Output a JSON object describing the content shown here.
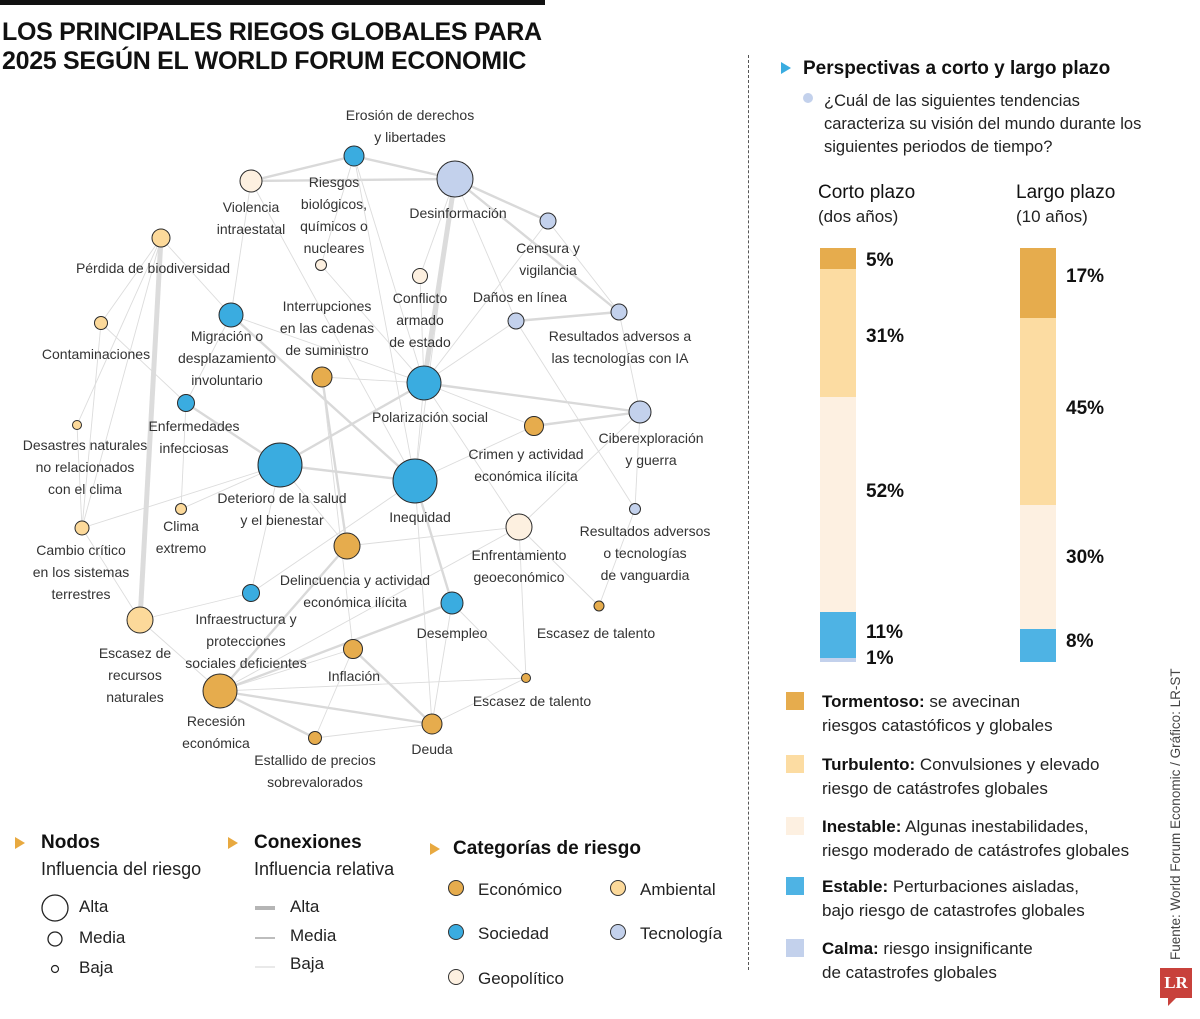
{
  "title": {
    "line1": "LOS PRINCIPALES RIEGOS GLOBALES PARA",
    "line2": "2025 SEGÚN EL WORLD FORUM ECONOMIC"
  },
  "colors": {
    "economico": "#e6ac4d",
    "ambiental": "#fcd99a",
    "sociedad": "#3aace0",
    "tecnologia": "#c3d1ec",
    "geopolitico": "#fdf0e0",
    "tormentoso": "#e6ac4d",
    "turbulento": "#fcdca2",
    "inestable": "#fdf0e1",
    "estable": "#4eb3e4",
    "calma": "#c3d1ec",
    "accent": "#e8a940",
    "edge": "#d8d8d8"
  },
  "chart_data": [
    {
      "type": "network",
      "title": "LOS PRINCIPALES RIEGOS GLOBALES PARA 2025 SEGÚN EL WORLD FORUM ECONOMIC",
      "nodes": [
        {
          "id": "erosion",
          "label": [
            "Erosión de derechos",
            "y libertades"
          ],
          "category": "sociedad",
          "influence": "media"
        },
        {
          "id": "desinformacion",
          "label": [
            "Desinformación"
          ],
          "category": "tecnologia",
          "influence": "alta"
        },
        {
          "id": "violencia",
          "label": [
            "Violencia",
            "intraestatal"
          ],
          "category": "geopolitico",
          "influence": "media"
        },
        {
          "id": "riesgos_bio",
          "label": [
            "Riesgos",
            "biológicos,",
            "químicos o",
            "nucleares"
          ],
          "category": "geopolitico",
          "influence": "baja"
        },
        {
          "id": "censura",
          "label": [
            "Censura y",
            "vigilancia"
          ],
          "category": "tecnologia",
          "influence": "baja"
        },
        {
          "id": "biodiversidad",
          "label": [
            "Pérdida de biodiversidad"
          ],
          "category": "ambiental",
          "influence": "media"
        },
        {
          "id": "conflicto",
          "label": [
            "Conflicto",
            "armado",
            "de estado"
          ],
          "category": "geopolitico",
          "influence": "baja"
        },
        {
          "id": "danos",
          "label": [
            "Daños en línea"
          ],
          "category": "tecnologia",
          "influence": "baja"
        },
        {
          "id": "ia",
          "label": [
            "Resultados adversos a",
            "las tecnologías con IA"
          ],
          "category": "tecnologia",
          "influence": "baja"
        },
        {
          "id": "migracion",
          "label": [
            "Migración o",
            "desplazamiento",
            "involuntario"
          ],
          "category": "sociedad",
          "influence": "media"
        },
        {
          "id": "interrupciones",
          "label": [
            "Interrupciones",
            "en las cadenas",
            "de suministro"
          ],
          "category": "economico",
          "influence": "media"
        },
        {
          "id": "contaminaciones",
          "label": [
            "Contaminaciones"
          ],
          "category": "ambiental",
          "influence": "baja"
        },
        {
          "id": "polarizacion",
          "label": [
            "Polarización social"
          ],
          "category": "sociedad",
          "influence": "alta"
        },
        {
          "id": "enfermedades",
          "label": [
            "Enfermedades",
            "infecciosas"
          ],
          "category": "sociedad",
          "influence": "baja"
        },
        {
          "id": "crimen",
          "label": [
            "Crimen y actividad",
            "económica ilícita"
          ],
          "category": "economico",
          "influence": "baja"
        },
        {
          "id": "ciber",
          "label": [
            "Ciberexploración",
            "y guerra"
          ],
          "category": "tecnologia",
          "influence": "media"
        },
        {
          "id": "desastres",
          "label": [
            "Desastres naturales",
            "no relacionados",
            "con el clima"
          ],
          "category": "ambiental",
          "influence": "baja"
        },
        {
          "id": "deterioro",
          "label": [
            "Deterioro de la salud",
            "y el bienestar"
          ],
          "category": "sociedad",
          "influence": "alta"
        },
        {
          "id": "inequidad",
          "label": [
            "Inequidad"
          ],
          "category": "sociedad",
          "influence": "alta"
        },
        {
          "id": "clima",
          "label": [
            "Clima",
            "extremo"
          ],
          "category": "ambiental",
          "influence": "baja"
        },
        {
          "id": "vanguardia",
          "label": [
            "Resultados adversos",
            "o tecnologías",
            "de vanguardia"
          ],
          "category": "tecnologia",
          "influence": "baja"
        },
        {
          "id": "cambio",
          "label": [
            "Cambio crítico",
            "en los sistemas",
            "terrestres"
          ],
          "category": "ambiental",
          "influence": "baja"
        },
        {
          "id": "enfrentamiento",
          "label": [
            "Enfrentamiento",
            "geoeconómico"
          ],
          "category": "geopolitico",
          "influence": "media"
        },
        {
          "id": "delincuencia",
          "label": [
            "Delincuencia y actividad",
            "económica ilícita"
          ],
          "category": "economico",
          "influence": "media"
        },
        {
          "id": "infraestructura",
          "label": [
            "Infraestructura y",
            "protecciones",
            "sociales deficientes"
          ],
          "category": "sociedad",
          "influence": "baja"
        },
        {
          "id": "desempleo",
          "label": [
            "Desempleo"
          ],
          "category": "sociedad",
          "influence": "media"
        },
        {
          "id": "talento1",
          "label": [
            "Escasez de talento"
          ],
          "category": "economico",
          "influence": "baja"
        },
        {
          "id": "escasez_rec",
          "label": [
            "Escasez de",
            "recursos",
            "naturales"
          ],
          "category": "ambiental",
          "influence": "media"
        },
        {
          "id": "inflacion",
          "label": [
            "Inflación"
          ],
          "category": "economico",
          "influence": "media"
        },
        {
          "id": "talento2",
          "label": [
            "Escasez de talento"
          ],
          "category": "economico",
          "influence": "baja"
        },
        {
          "id": "recesion",
          "label": [
            "Recesión",
            "económica"
          ],
          "category": "economico",
          "influence": "alta"
        },
        {
          "id": "estallido",
          "label": [
            "Estallido de precios",
            "sobrevalorados"
          ],
          "category": "economico",
          "influence": "baja"
        },
        {
          "id": "deuda",
          "label": [
            "Deuda"
          ],
          "category": "economico",
          "influence": "media"
        }
      ],
      "edges": [
        [
          "biodiversidad",
          "escasez_rec",
          "alta"
        ],
        [
          "desinformacion",
          "polarizacion",
          "alta"
        ],
        [
          "erosion",
          "desinformacion",
          "media"
        ],
        [
          "violencia",
          "erosion",
          "media"
        ],
        [
          "violencia",
          "desinformacion",
          "media"
        ],
        [
          "desinformacion",
          "censura",
          "media"
        ],
        [
          "desinformacion",
          "ia",
          "media"
        ],
        [
          "danos",
          "ia",
          "media"
        ],
        [
          "censura",
          "ia",
          "baja"
        ],
        [
          "polarizacion",
          "ciber",
          "media"
        ],
        [
          "crimen",
          "ciber",
          "media"
        ],
        [
          "migracion",
          "inequidad",
          "media"
        ],
        [
          "migracion",
          "polarizacion",
          "baja"
        ],
        [
          "deterioro",
          "inequidad",
          "media"
        ],
        [
          "deterioro",
          "polarizacion",
          "media"
        ],
        [
          "enfermedades",
          "deterioro",
          "media"
        ],
        [
          "interrupciones",
          "delincuencia",
          "media"
        ],
        [
          "inequidad",
          "desempleo",
          "media"
        ],
        [
          "inequidad",
          "polarizacion",
          "baja"
        ],
        [
          "recesion",
          "delincuencia",
          "media"
        ],
        [
          "recesion",
          "inflacion",
          "baja"
        ],
        [
          "recesion",
          "deuda",
          "media"
        ],
        [
          "recesion",
          "estallido",
          "media"
        ],
        [
          "recesion",
          "desempleo",
          "media"
        ],
        [
          "recesion",
          "enfrentamiento",
          "baja"
        ],
        [
          "inflacion",
          "deuda",
          "media"
        ],
        [
          "inflacion",
          "estallido",
          "baja"
        ],
        [
          "desempleo",
          "deuda",
          "baja"
        ],
        [
          "enfrentamiento",
          "talento1",
          "baja"
        ],
        [
          "enfrentamiento",
          "delincuencia",
          "baja"
        ],
        [
          "escasez_rec",
          "cambio",
          "baja"
        ],
        [
          "escasez_rec",
          "recesion",
          "baja"
        ],
        [
          "escasez_rec",
          "infraestructura",
          "baja"
        ],
        [
          "biodiversidad",
          "contaminaciones",
          "baja"
        ],
        [
          "biodiversidad",
          "migracion",
          "baja"
        ],
        [
          "biodiversidad",
          "cambio",
          "baja"
        ],
        [
          "biodiversidad",
          "desastres",
          "baja"
        ],
        [
          "contaminaciones",
          "enfermedades",
          "baja"
        ],
        [
          "contaminaciones",
          "cambio",
          "baja"
        ],
        [
          "desastres",
          "cambio",
          "baja"
        ],
        [
          "clima",
          "enfermedades",
          "baja"
        ],
        [
          "clima",
          "deterioro",
          "baja"
        ],
        [
          "cambio",
          "deterioro",
          "baja"
        ],
        [
          "riesgos_bio",
          "polarizacion",
          "baja"
        ],
        [
          "riesgos_bio",
          "erosion",
          "baja"
        ],
        [
          "conflicto",
          "desinformacion",
          "baja"
        ],
        [
          "conflicto",
          "polarizacion",
          "baja"
        ],
        [
          "danos",
          "polarizacion",
          "baja"
        ],
        [
          "danos",
          "desinformacion",
          "baja"
        ],
        [
          "danos",
          "vanguardia",
          "baja"
        ],
        [
          "ciber",
          "vanguardia",
          "baja"
        ],
        [
          "crimen",
          "inequidad",
          "baja"
        ],
        [
          "crimen",
          "polarizacion",
          "baja"
        ],
        [
          "vanguardia",
          "talento1",
          "baja"
        ],
        [
          "talento2",
          "desempleo",
          "baja"
        ],
        [
          "talento2",
          "enfrentamiento",
          "baja"
        ],
        [
          "talento2",
          "recesion",
          "baja"
        ],
        [
          "deuda",
          "talento2",
          "baja"
        ],
        [
          "infraestructura",
          "deterioro",
          "baja"
        ],
        [
          "infraestructura",
          "inequidad",
          "baja"
        ],
        [
          "violencia",
          "inequidad",
          "baja"
        ],
        [
          "violencia",
          "migracion",
          "baja"
        ],
        [
          "erosion",
          "polarizacion",
          "baja"
        ],
        [
          "erosion",
          "inequidad",
          "baja"
        ],
        [
          "deterioro",
          "delincuencia",
          "baja"
        ],
        [
          "polarizacion",
          "enfrentamiento",
          "baja"
        ],
        [
          "inequidad",
          "deuda",
          "baja"
        ],
        [
          "interrupciones",
          "inflacion",
          "baja"
        ],
        [
          "interrupciones",
          "polarizacion",
          "baja"
        ],
        [
          "enfrentamiento",
          "ciber",
          "baja"
        ],
        [
          "enfermedades",
          "migracion",
          "baja"
        ],
        [
          "estallido",
          "deuda",
          "baja"
        ],
        [
          "desinformacion",
          "inequidad",
          "baja"
        ],
        [
          "ia",
          "ciber",
          "baja"
        ],
        [
          "censura",
          "polarizacion",
          "baja"
        ]
      ],
      "legend": {
        "nodes": {
          "title": "Nodos",
          "subtitle": "Influencia del riesgo",
          "items": [
            "Alta",
            "Media",
            "Baja"
          ]
        },
        "edges": {
          "title": "Conexiones",
          "subtitle": "Influencia relativa",
          "items": [
            "Alta",
            "Media",
            "Baja"
          ]
        },
        "categories": {
          "title": "Categorías de riesgo",
          "items": [
            {
              "key": "economico",
              "label": "Económico"
            },
            {
              "key": "ambiental",
              "label": "Ambiental"
            },
            {
              "key": "sociedad",
              "label": "Sociedad"
            },
            {
              "key": "tecnologia",
              "label": "Tecnología"
            },
            {
              "key": "geopolitico",
              "label": "Geopolítico"
            }
          ]
        }
      }
    },
    {
      "type": "bar",
      "stacked": true,
      "title": "Perspectivas a corto y largo plazo",
      "question": "¿Cuál de las siguientes tendencias caracteriza su visión del mundo durante los siguientes periodos de tiempo?",
      "categories": [
        "Corto plazo (dos años)",
        "Largo plazo (10 años)"
      ],
      "series": [
        {
          "name": "Tormentoso",
          "values": [
            5,
            17
          ]
        },
        {
          "name": "Turbulento",
          "values": [
            31,
            45
          ]
        },
        {
          "name": "Inestable",
          "values": [
            52,
            30
          ]
        },
        {
          "name": "Estable",
          "values": [
            11,
            8
          ]
        },
        {
          "name": "Calma",
          "values": [
            1,
            0
          ]
        }
      ],
      "unit": "%"
    }
  ],
  "right_panel": {
    "heading": "Perspectivas a corto y largo plazo",
    "question": "¿Cuál de las siguientes tendencias caracteriza su visión del mundo durante los siguientes periodos de tiempo?",
    "short": {
      "title": "Corto plazo",
      "subtitle": "(dos años)",
      "labels": [
        "5%",
        "31%",
        "52%",
        "11%",
        "1%"
      ]
    },
    "long": {
      "title": "Largo plazo",
      "subtitle": "(10 años)",
      "labels": [
        "17%",
        "45%",
        "30%",
        "8%"
      ]
    },
    "legend": [
      {
        "key": "tormentoso",
        "bold": "Tormentoso:",
        "rest1": " se avecinan",
        "rest2": "riesgos catastóficos y globales"
      },
      {
        "key": "turbulento",
        "bold": "Turbulento:",
        "rest1": " Convulsiones y elevado",
        "rest2": "riesgo de catástrofes globales"
      },
      {
        "key": "inestable",
        "bold": "Inestable:",
        "rest1": " Algunas inestabilidades,",
        "rest2": "riesgo moderado de catástrofes globales"
      },
      {
        "key": "estable",
        "bold": "Estable:",
        "rest1": " Perturbaciones aisladas,",
        "rest2": "bajo riesgo de catastrofes globales"
      },
      {
        "key": "calma",
        "bold": "Calma:",
        "rest1": " riesgo insignificante",
        "rest2": "de catastrofes globales"
      }
    ]
  },
  "source": "Fuente: World Forum Economic / Gráfico: LR-ST",
  "logo": "LR"
}
